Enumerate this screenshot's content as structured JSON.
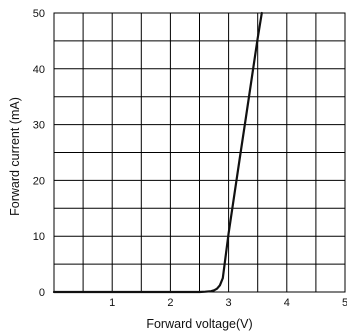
{
  "chart_data": {
    "type": "line",
    "title": "",
    "xlabel": "Forward voltage(V)",
    "ylabel": "Forward current (mA)",
    "xlim": [
      0,
      5
    ],
    "ylim": [
      0,
      50
    ],
    "x_ticks": [
      1,
      2,
      3,
      4,
      5
    ],
    "x_tick_labels": [
      "1",
      "2",
      "3",
      "4",
      "5"
    ],
    "y_ticks": [
      0,
      10,
      20,
      30,
      40,
      50
    ],
    "y_tick_labels": [
      "0",
      "10",
      "20",
      "30",
      "40",
      "50"
    ],
    "grid": true,
    "grid_step_x": 0.5,
    "grid_step_y": 5,
    "series": [
      {
        "x": [
          0,
          1,
          2,
          2.5,
          2.6,
          2.7,
          2.75,
          2.8,
          2.85,
          2.9,
          3.0,
          3.1,
          3.2,
          3.3,
          3.4,
          3.5,
          3.57
        ],
        "y": [
          0,
          0,
          0,
          0,
          0.05,
          0.15,
          0.3,
          0.6,
          1.2,
          2.5,
          10.5,
          17.5,
          24.5,
          31.5,
          38.5,
          45.5,
          50
        ]
      }
    ],
    "colors": {
      "line": "#111111",
      "grid": "#000000"
    }
  }
}
